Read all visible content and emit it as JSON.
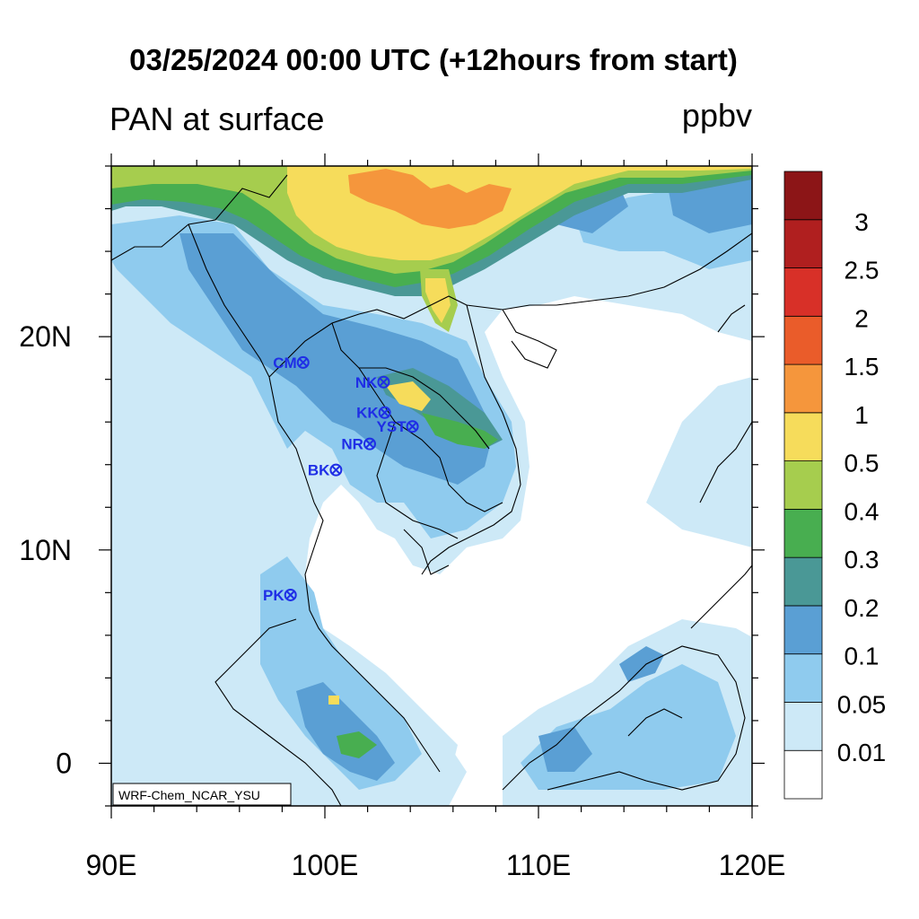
{
  "title": "03/25/2024 00:00 UTC (+12hours from start)",
  "variable_label": "PAN at surface",
  "units": "ppbv",
  "model_label": "WRF-Chem_NCAR_YSU",
  "map": {
    "lon_range": [
      90,
      120
    ],
    "lat_range": [
      -2,
      28
    ],
    "lon_ticks": [
      "90E",
      "100E",
      "110E",
      "120E"
    ],
    "lat_ticks": [
      "0",
      "10N",
      "20N"
    ],
    "land_color": "#ffffff",
    "boundary_color": "#000000"
  },
  "colorbar": {
    "labels": [
      "0.01",
      "0.05",
      "0.1",
      "0.2",
      "0.3",
      "0.4",
      "0.5",
      "1",
      "1.5",
      "2",
      "2.5",
      "3"
    ],
    "colors": [
      "#ffffff",
      "#cde9f7",
      "#8fcbee",
      "#5a9fd4",
      "#4a9896",
      "#48ae50",
      "#a6cd4e",
      "#f6dc5b",
      "#f5963c",
      "#ea5c2a",
      "#d83028",
      "#b01f1f",
      "#8c1517"
    ]
  },
  "stations": [
    {
      "code": "CM",
      "lon": 98.98,
      "lat": 18.79
    },
    {
      "code": "NK",
      "lon": 102.75,
      "lat": 17.87
    },
    {
      "code": "KK",
      "lon": 102.8,
      "lat": 16.44
    },
    {
      "code": "YST",
      "lon": 104.1,
      "lat": 15.79
    },
    {
      "code": "NR",
      "lon": 102.1,
      "lat": 14.97
    },
    {
      "code": "BK",
      "lon": 100.52,
      "lat": 13.75
    },
    {
      "code": "PK",
      "lon": 98.39,
      "lat": 7.89
    }
  ],
  "station_color": "#1f2ee6"
}
